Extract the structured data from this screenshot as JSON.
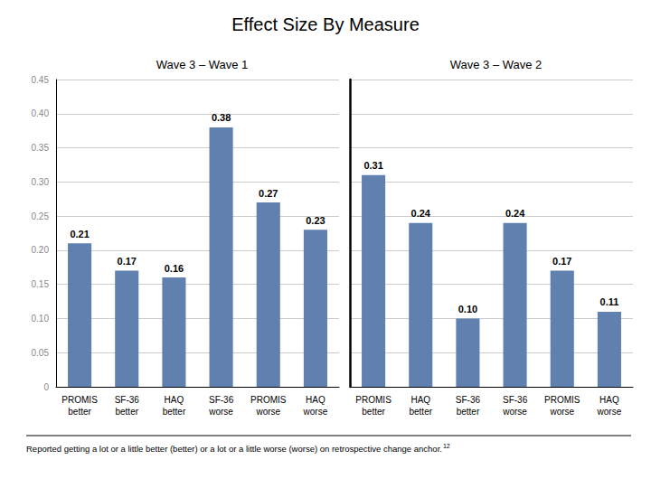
{
  "chart_data": [
    {
      "type": "bar",
      "title": "Effect Size By Measure",
      "subtitle": "Wave 3 – Wave 1",
      "categories": [
        "PROMIS\nbetter",
        "SF-36\nbetter",
        "HAQ\nbetter",
        "SF-36\nworse",
        "PROMIS\nworse",
        "HAQ\nworse"
      ],
      "values": [
        0.21,
        0.17,
        0.16,
        0.38,
        0.27,
        0.23
      ],
      "value_labels": [
        "0.21",
        "0.17",
        "0.16",
        "0.38",
        "0.27",
        "0.23"
      ],
      "color": "#6080b0",
      "ylim": [
        0,
        0.45
      ],
      "yticks": [
        0,
        0.05,
        {
          "value": 0.1,
          "label": "0.10"
        },
        0.15,
        {
          "value": 0.2,
          "label": "0.20"
        },
        0.25,
        {
          "value": 0.3,
          "label": "0.30"
        },
        0.35,
        {
          "value": 0.4,
          "label": "0.40"
        },
        0.45
      ],
      "grid": true,
      "data_labels": true,
      "annotations": [
        "Reported getting a lot or a little better (better) or a lot or a little worse (worse) on retrospective change anchor.",
        "12"
      ]
    },
    {
      "type": "bar",
      "subtitle": "Wave 3 – Wave 2",
      "categories": [
        "PROMIS\nbetter",
        "HAQ\nbetter",
        "SF-36\nbetter",
        "SF-36\nworse",
        "PROMIS\nworse",
        "HAQ\nworse"
      ],
      "values": [
        0.31,
        0.24,
        0.1,
        0.24,
        0.17,
        0.11
      ],
      "value_labels": [
        "0.31",
        "0.24",
        "0.10",
        "0.24",
        "0.17",
        "0.11"
      ],
      "color": "#6080b0",
      "ylim": [
        0,
        0.45
      ],
      "yticks": [
        0,
        0.05,
        {
          "value": 0.1,
          "label": "0.10"
        },
        0.15,
        {
          "value": 0.2,
          "label": "0.20"
        },
        0.25,
        {
          "value": 0.3,
          "label": "0.30"
        },
        0.35,
        {
          "value": 0.4,
          "label": "0.40"
        },
        0.45
      ],
      "grid": true,
      "data_labels": true,
      "tick_labels": "x"
    }
  ]
}
